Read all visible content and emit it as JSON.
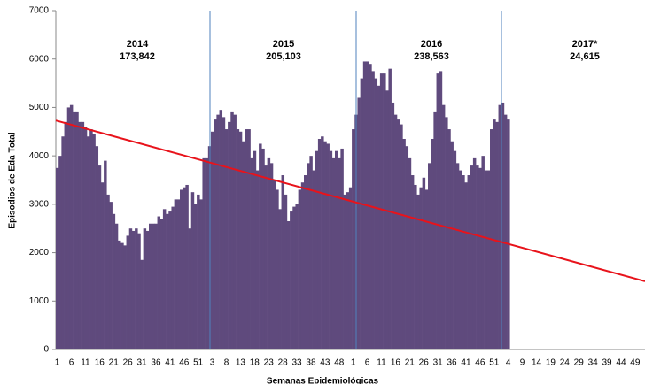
{
  "chart_data": {
    "type": "bar",
    "y_label": "Episodios de Eda Total",
    "x_label": "Semanas Epidemiológicas",
    "color": "#5f4a7d",
    "ylim": [
      0,
      7000
    ],
    "yticks": [
      0,
      1000,
      2000,
      3000,
      4000,
      5000,
      6000,
      7000
    ],
    "annotations": [
      [
        "2014",
        "173,842"
      ],
      [
        "2015",
        "205,103"
      ],
      [
        "2016",
        "238,563"
      ],
      [
        "2017*",
        "24,615"
      ]
    ],
    "trend": {
      "color": "#e8131b",
      "values": [
        4730,
        1410
      ]
    },
    "categories": [
      1,
      null,
      null,
      null,
      null,
      6,
      null,
      null,
      null,
      null,
      11,
      null,
      null,
      null,
      null,
      16,
      null,
      null,
      null,
      null,
      21,
      null,
      null,
      null,
      null,
      26,
      null,
      null,
      null,
      null,
      31,
      null,
      null,
      null,
      null,
      36,
      null,
      null,
      null,
      null,
      41,
      null,
      null,
      null,
      null,
      46,
      null,
      null,
      null,
      null,
      51,
      null,
      null,
      null,
      null,
      3,
      null,
      null,
      null,
      null,
      8,
      null,
      null,
      null,
      null,
      13,
      null,
      null,
      null,
      null,
      18,
      null,
      null,
      null,
      null,
      23,
      null,
      null,
      null,
      null,
      28,
      null,
      null,
      null,
      null,
      33,
      null,
      null,
      null,
      null,
      38,
      null,
      null,
      null,
      null,
      43,
      null,
      null,
      null,
      null,
      48,
      null,
      null,
      null,
      null,
      1,
      null,
      null,
      null,
      null,
      6,
      null,
      null,
      null,
      null,
      11,
      null,
      null,
      null,
      null,
      16,
      null,
      null,
      null,
      null,
      21,
      null,
      null,
      null,
      null,
      26,
      null,
      null,
      null,
      null,
      31,
      null,
      null,
      null,
      null,
      36,
      null,
      null,
      null,
      null,
      41,
      null,
      null,
      null,
      null,
      46,
      null,
      null,
      null,
      null,
      51,
      null,
      null,
      null,
      null,
      4,
      null,
      null,
      null,
      null,
      9,
      null,
      null,
      null,
      null,
      14,
      null,
      null,
      null,
      null,
      19,
      null,
      null,
      null,
      null,
      24,
      null,
      null,
      null,
      null,
      29,
      null,
      null,
      null,
      null,
      34,
      null,
      null,
      null,
      null,
      39,
      null,
      null,
      null,
      null,
      44,
      null,
      null,
      null,
      null,
      49,
      null,
      null,
      null
    ],
    "values": [
      3750,
      4000,
      4400,
      4700,
      5000,
      5050,
      4900,
      4900,
      4700,
      4700,
      4600,
      4400,
      4550,
      4450,
      4200,
      3800,
      3450,
      3900,
      3200,
      3050,
      2800,
      2600,
      2250,
      2200,
      2150,
      2350,
      2500,
      2450,
      2500,
      2400,
      1850,
      2500,
      2450,
      2600,
      2600,
      2600,
      2750,
      2700,
      2900,
      2800,
      2850,
      2950,
      3100,
      3100,
      3300,
      3350,
      3400,
      2500,
      3250,
      3000,
      3200,
      3100,
      3950,
      3950,
      4200,
      4500,
      4750,
      4850,
      4950,
      4800,
      4550,
      4700,
      4900,
      4850,
      4550,
      4500,
      4300,
      4550,
      4550,
      3950,
      4100,
      3700,
      4250,
      4150,
      3800,
      3950,
      3850,
      3500,
      3300,
      2900,
      3600,
      3200,
      2650,
      2850,
      2950,
      3000,
      3300,
      3450,
      3600,
      3850,
      4000,
      3700,
      4100,
      4350,
      4400,
      4300,
      4250,
      4100,
      3950,
      4100,
      3950,
      4150,
      3200,
      3250,
      3350,
      4550,
      4850,
      5200,
      5600,
      5950,
      5950,
      5900,
      5750,
      5600,
      5450,
      5700,
      5700,
      5350,
      5800,
      5100,
      4850,
      4750,
      4650,
      4350,
      4200,
      3950,
      3600,
      3400,
      3200,
      3350,
      3550,
      3300,
      3850,
      4350,
      4900,
      5700,
      5750,
      5050,
      4800,
      4550,
      4300,
      4100,
      3850,
      3700,
      3600,
      3450,
      3600,
      3800,
      3950,
      3800,
      3750,
      4000,
      3700,
      3700,
      4550,
      4750,
      4700,
      5050,
      5100,
      4850,
      4750,
      null,
      null,
      null,
      null,
      null,
      null,
      null,
      null,
      null,
      null,
      null,
      null,
      null,
      null,
      null,
      null,
      null,
      null,
      null,
      null,
      null,
      null,
      null,
      null,
      null,
      null,
      null,
      null,
      null,
      null,
      null,
      null,
      null,
      null,
      null,
      null,
      null,
      null,
      null,
      null,
      null,
      null,
      null,
      null,
      null,
      null,
      null,
      null
    ]
  }
}
